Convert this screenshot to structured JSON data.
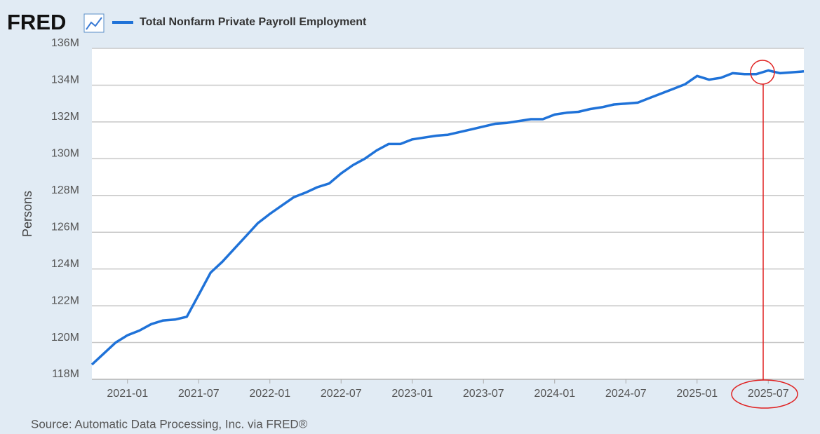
{
  "logo": "FRED",
  "chart_data": {
    "type": "line",
    "title": "Total Nonfarm Private Payroll Employment",
    "y_label": "Persons",
    "source": "Source: Automatic Data Processing, Inc. via FRED®",
    "x": [
      "2020-10",
      "2020-11",
      "2020-12",
      "2021-01",
      "2021-02",
      "2021-03",
      "2021-04",
      "2021-05",
      "2021-06",
      "2021-07",
      "2021-08",
      "2021-09",
      "2021-10",
      "2021-11",
      "2021-12",
      "2022-01",
      "2022-02",
      "2022-03",
      "2022-04",
      "2022-05",
      "2022-06",
      "2022-07",
      "2022-08",
      "2022-09",
      "2022-10",
      "2022-11",
      "2022-12",
      "2023-01",
      "2023-02",
      "2023-03",
      "2023-04",
      "2023-05",
      "2023-06",
      "2023-07",
      "2023-08",
      "2023-09",
      "2023-10",
      "2023-11",
      "2023-12",
      "2024-01",
      "2024-02",
      "2024-03",
      "2024-04",
      "2024-05",
      "2024-06",
      "2024-07",
      "2024-08",
      "2024-09",
      "2024-10",
      "2024-11",
      "2024-12",
      "2025-01",
      "2025-02",
      "2025-03",
      "2025-04",
      "2025-05",
      "2025-06",
      "2025-07",
      "2025-08",
      "2025-09",
      "2025-10"
    ],
    "series": [
      {
        "name": "Total Nonfarm Private Payroll Employment",
        "color": "#1f72d8",
        "values": [
          118800000,
          119400000,
          120000000,
          120400000,
          120650000,
          121000000,
          121200000,
          121250000,
          121400000,
          122600000,
          123800000,
          124400000,
          125100000,
          125800000,
          126500000,
          127000000,
          127450000,
          127900000,
          128150000,
          128450000,
          128650000,
          129200000,
          129650000,
          130000000,
          130450000,
          130800000,
          130800000,
          131050000,
          131150000,
          131250000,
          131300000,
          131450000,
          131600000,
          131750000,
          131900000,
          131950000,
          132050000,
          132150000,
          132150000,
          132400000,
          132500000,
          132550000,
          132700000,
          132800000,
          132950000,
          133000000,
          133050000,
          133300000,
          133550000,
          133800000,
          134050000,
          134500000,
          134300000,
          134400000,
          134650000,
          134600000,
          134600000,
          134800000,
          134650000,
          134700000,
          134750000
        ]
      }
    ],
    "xlim": [
      "2020-10",
      "2025-10"
    ],
    "xticks": [
      "2021-01",
      "2021-07",
      "2022-01",
      "2022-07",
      "2023-01",
      "2023-07",
      "2024-01",
      "2024-07",
      "2025-01",
      "2025-07"
    ],
    "ylim": [
      118000000,
      136000000
    ],
    "yticks": [
      {
        "value": 118000000,
        "label": "118M"
      },
      {
        "value": 120000000,
        "label": "120M"
      },
      {
        "value": 122000000,
        "label": "122M"
      },
      {
        "value": 124000000,
        "label": "124M"
      },
      {
        "value": 126000000,
        "label": "126M"
      },
      {
        "value": 128000000,
        "label": "128M"
      },
      {
        "value": 130000000,
        "label": "130M"
      },
      {
        "value": 132000000,
        "label": "132M"
      },
      {
        "value": 134000000,
        "label": "134M"
      },
      {
        "value": 136000000,
        "label": "136M"
      }
    ],
    "grid": true
  }
}
